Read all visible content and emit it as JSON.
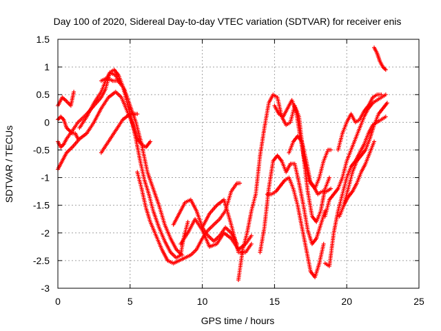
{
  "chart_data": {
    "type": "scatter",
    "title": "Day 100 of 2020, Sidereal Day-to-day VTEC variation (SDTVAR) for receiver enis",
    "xlabel": "GPS time / hours",
    "ylabel": "SDTVAR / TECUs",
    "xlim": [
      0,
      25
    ],
    "ylim": [
      -3,
      1.5
    ],
    "xticks": [
      0,
      5,
      10,
      15,
      20,
      25
    ],
    "xtick_labels": [
      "0",
      "5",
      "10",
      "15",
      "20",
      "25"
    ],
    "yticks": [
      -3,
      -2.5,
      -2,
      -1.5,
      -1,
      -0.5,
      0,
      0.5,
      1,
      1.5
    ],
    "ytick_labels": [
      "-3",
      "-2.5",
      "-2",
      "-1.5",
      "-1",
      "-0.5",
      "0",
      "0.5",
      "1",
      "1.5"
    ],
    "grid": true,
    "marker": "plus",
    "color": "#ff0000",
    "series": [
      {
        "x": [
          0.0,
          0.3,
          0.6,
          0.9,
          1.1
        ],
        "y": [
          0.3,
          0.45,
          0.38,
          0.3,
          0.55
        ]
      },
      {
        "x": [
          0.0,
          0.2,
          0.4,
          0.6,
          0.8,
          1.0,
          1.2,
          1.4
        ],
        "y": [
          0.05,
          0.1,
          0.05,
          -0.1,
          -0.15,
          -0.2,
          -0.2,
          -0.3
        ]
      },
      {
        "x": [
          0.0,
          0.2,
          0.4,
          0.6,
          1.0,
          1.4,
          2.0,
          2.5,
          3.0,
          3.3,
          3.6,
          4.0,
          4.3
        ],
        "y": [
          -0.35,
          -0.45,
          -0.4,
          -0.3,
          -0.15,
          0.0,
          0.15,
          0.3,
          0.45,
          0.6,
          0.9,
          0.85,
          0.7
        ]
      },
      {
        "x": [
          0.0,
          0.3,
          0.6,
          1.0,
          1.5,
          2.0,
          2.5,
          3.0,
          3.5,
          4.0,
          4.4,
          4.8,
          5.2,
          5.5,
          5.8,
          6.1,
          6.4
        ],
        "y": [
          -0.85,
          -0.7,
          -0.55,
          -0.45,
          -0.3,
          -0.2,
          0.0,
          0.25,
          0.45,
          0.55,
          0.45,
          0.2,
          -0.05,
          -0.3,
          -0.4,
          -0.45,
          -0.35
        ]
      },
      {
        "x": [
          1.5,
          2.0,
          2.5,
          3.0,
          3.3,
          3.6,
          3.9,
          4.2,
          4.5,
          4.8,
          5.1,
          5.4,
          5.7,
          6.0,
          6.3,
          6.6,
          7.0,
          7.4,
          7.8,
          8.2,
          8.5,
          8.7,
          9.0
        ],
        "y": [
          -0.1,
          0.1,
          0.35,
          0.55,
          0.75,
          0.9,
          0.95,
          0.85,
          0.65,
          0.35,
          0.05,
          -0.3,
          -0.7,
          -1.05,
          -1.3,
          -1.6,
          -1.9,
          -2.15,
          -2.35,
          -2.45,
          -2.4,
          -2.1,
          -1.8
        ]
      },
      {
        "x": [
          3.0,
          3.4,
          3.8,
          4.2,
          4.6,
          5.0,
          5.4,
          5.8,
          6.2,
          6.6,
          7.0,
          7.4,
          7.8,
          8.2,
          8.6
        ],
        "y": [
          0.75,
          0.8,
          0.75,
          0.75,
          0.6,
          0.3,
          0.0,
          -0.4,
          -0.9,
          -1.2,
          -1.5,
          -1.85,
          -2.1,
          -2.3,
          -2.4
        ]
      },
      {
        "x": [
          3.0,
          3.5,
          4.0,
          4.5,
          5.0,
          5.5
        ],
        "y": [
          -0.55,
          -0.35,
          -0.15,
          0.05,
          0.15,
          0.15
        ]
      },
      {
        "x": [
          5.5,
          5.8,
          6.1,
          6.4,
          6.8,
          7.2,
          7.6,
          8.0,
          8.4,
          8.8,
          9.2,
          9.6,
          10.0,
          10.4,
          10.8,
          11.2,
          11.6,
          12.0,
          12.4,
          12.6
        ],
        "y": [
          -0.9,
          -1.2,
          -1.55,
          -1.8,
          -2.05,
          -2.3,
          -2.5,
          -2.55,
          -2.5,
          -2.45,
          -2.4,
          -2.3,
          -2.1,
          -1.95,
          -1.85,
          -1.75,
          -1.6,
          -1.25,
          -1.1,
          -1.1
        ]
      },
      {
        "x": [
          8.0,
          8.4,
          8.8,
          9.2,
          9.6,
          10.0,
          10.4,
          10.8,
          11.2,
          11.6,
          12.0,
          12.4
        ],
        "y": [
          -1.85,
          -1.65,
          -1.45,
          -1.4,
          -1.6,
          -1.9,
          -2.05,
          -2.15,
          -2.05,
          -1.9,
          -2.0,
          -2.2
        ]
      },
      {
        "x": [
          8.5,
          9.0,
          9.5,
          10.0,
          10.5,
          11.0,
          11.5,
          12.0,
          12.5,
          13.0,
          13.4
        ],
        "y": [
          -2.2,
          -2.0,
          -1.75,
          -1.95,
          -2.25,
          -2.2,
          -2.0,
          -2.1,
          -2.3,
          -2.2,
          -2.05
        ]
      },
      {
        "x": [
          10.0,
          10.5,
          11.0,
          11.5,
          12.0,
          12.5,
          13.0,
          13.4
        ],
        "y": [
          -1.9,
          -1.65,
          -1.5,
          -1.4,
          -1.85,
          -2.35,
          -2.35,
          -2.2
        ]
      },
      {
        "x": [
          12.5,
          12.8,
          13.1,
          13.4,
          13.7,
          14.0,
          14.3,
          14.6,
          14.9,
          15.2,
          15.5,
          15.8,
          16.1,
          16.4,
          16.7,
          17.0,
          17.3,
          17.6,
          17.9,
          18.2,
          18.5,
          18.8
        ],
        "y": [
          -2.85,
          -2.3,
          -2.0,
          -1.6,
          -1.3,
          -0.6,
          -0.1,
          0.35,
          0.5,
          0.45,
          0.1,
          -0.05,
          0.0,
          0.3,
          0.1,
          -0.6,
          -1.25,
          -1.7,
          -1.8,
          -1.6,
          -1.2,
          -1.0
        ]
      },
      {
        "x": [
          14.0,
          14.3,
          14.6,
          14.9,
          15.2,
          15.5,
          15.8,
          16.1,
          16.4,
          16.7,
          17.0,
          17.3,
          17.6,
          17.9,
          18.2,
          18.5
        ],
        "y": [
          -2.35,
          -1.9,
          -1.2,
          -0.7,
          -0.6,
          -0.7,
          -0.9,
          -0.75,
          -0.75,
          -1.1,
          -1.5,
          -1.95,
          -2.2,
          -2.1,
          -1.85,
          -1.6
        ]
      },
      {
        "x": [
          14.5,
          14.8,
          15.1,
          15.4,
          15.7,
          16.0,
          16.3,
          16.6,
          16.9,
          17.2,
          17.5,
          17.8,
          18.1,
          18.4
        ],
        "y": [
          -1.3,
          -1.3,
          -1.25,
          -1.15,
          -1.05,
          -1.0,
          -1.2,
          -1.5,
          -1.9,
          -2.3,
          -2.7,
          -2.8,
          -2.55,
          -2.2
        ]
      },
      {
        "x": [
          15.0,
          15.3,
          15.6,
          15.9,
          16.2,
          16.5,
          16.8,
          17.1,
          17.4,
          17.7,
          18.0,
          18.3,
          18.6,
          18.9
        ],
        "y": [
          0.3,
          0.15,
          0.1,
          0.25,
          0.4,
          0.2,
          -0.3,
          -0.7,
          -1.05,
          -1.15,
          -1.3,
          -1.25,
          -1.25,
          -1.2
        ]
      },
      {
        "x": [
          16.0,
          16.3,
          16.6,
          16.9,
          17.2,
          17.5,
          17.8,
          18.1,
          18.4,
          18.7,
          18.9
        ],
        "y": [
          -0.55,
          -0.35,
          -0.25,
          -0.35,
          -0.7,
          -1.1,
          -1.2,
          -1.0,
          -0.7,
          -0.5,
          -0.5
        ]
      },
      {
        "x": [
          18.5,
          18.8,
          19.1,
          19.4,
          19.7,
          20.0,
          20.3,
          20.6,
          20.9,
          21.2,
          21.5,
          21.8,
          22.1,
          22.4,
          22.7
        ],
        "y": [
          -2.55,
          -2.6,
          -2.0,
          -1.6,
          -1.3,
          -1.0,
          -0.8,
          -0.7,
          -0.55,
          -0.4,
          -0.2,
          -0.05,
          0.0,
          0.05,
          0.1
        ]
      },
      {
        "x": [
          18.5,
          18.8,
          19.1,
          19.4,
          19.7,
          20.0,
          20.3,
          20.6,
          20.9,
          21.2,
          21.5,
          21.8,
          22.1,
          22.4,
          22.7
        ],
        "y": [
          -1.7,
          -1.4,
          -1.3,
          -1.2,
          -1.0,
          -0.7,
          -0.5,
          -0.3,
          -0.1,
          0.1,
          0.25,
          0.35,
          0.4,
          0.45,
          0.5
        ]
      },
      {
        "x": [
          19.5,
          19.8,
          20.1,
          20.4,
          20.7,
          21.0,
          21.3,
          21.6,
          21.9,
          22.2,
          22.5,
          22.8
        ],
        "y": [
          -1.7,
          -1.5,
          -1.2,
          -0.9,
          -0.7,
          -0.6,
          -0.5,
          -0.3,
          -0.05,
          0.15,
          0.25,
          0.35
        ]
      },
      {
        "x": [
          19.4,
          19.7,
          20.0,
          20.3,
          20.6,
          20.9,
          21.2,
          21.5,
          21.8,
          22.1,
          22.4
        ],
        "y": [
          -0.5,
          -0.2,
          0.0,
          0.15,
          0.0,
          0.05,
          0.2,
          0.3,
          0.45,
          0.5,
          0.5
        ]
      },
      {
        "x": [
          19.8,
          20.1,
          20.4,
          20.7,
          21.0,
          21.3,
          21.6,
          21.9
        ],
        "y": [
          -1.5,
          -1.35,
          -1.25,
          -1.1,
          -0.9,
          -0.75,
          -0.55,
          -0.35
        ]
      },
      {
        "x": [
          21.9,
          22.1,
          22.3,
          22.5,
          22.7
        ],
        "y": [
          1.35,
          1.25,
          1.1,
          1.0,
          0.95
        ]
      }
    ]
  }
}
